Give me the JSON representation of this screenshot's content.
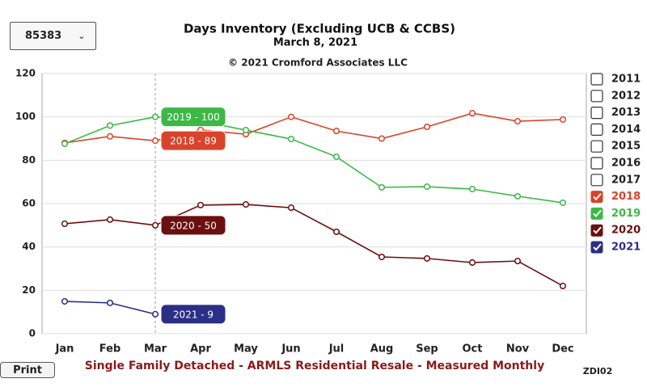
{
  "controls": {
    "dropdown": "85383",
    "print": "Print"
  },
  "chart_data": {
    "type": "line",
    "title": "Days Inventory (Excluding UCB & CCBS)",
    "subtitle": "March 8, 2021",
    "copyright": "© 2021 Cromford Associates LLC",
    "x_label": "Single Family Detached - ARMLS Residential Resale - Measured Monthly",
    "code": "ZDI02",
    "categories": [
      "Jan",
      "Feb",
      "Mar",
      "Apr",
      "May",
      "Jun",
      "Jul",
      "Aug",
      "Sep",
      "Oct",
      "Nov",
      "Dec"
    ],
    "ylim": [
      0,
      120
    ],
    "yticks": [
      0,
      20,
      40,
      60,
      80,
      100,
      120
    ],
    "grid": true,
    "legend": {
      "position": "right",
      "unchecked": [
        "2011",
        "2012",
        "2013",
        "2014",
        "2015",
        "2016",
        "2017"
      ]
    },
    "series": [
      {
        "name": "2018",
        "color": "#d9432b",
        "values": [
          88,
          91,
          89,
          94,
          92,
          100,
          93.5,
          90,
          95.4,
          101.7,
          98,
          98.8
        ],
        "value_labels": [
          null,
          null,
          "2018 - 89",
          null,
          null,
          null,
          null,
          null,
          null,
          null,
          null,
          null
        ]
      },
      {
        "name": "2019",
        "color": "#3cb846",
        "values": [
          87.6,
          96,
          100,
          98,
          93.9,
          89.8,
          81.6,
          67.5,
          67.8,
          66.7,
          63.4,
          60.4
        ],
        "value_labels": [
          null,
          null,
          "2019 - 100",
          null,
          null,
          null,
          null,
          null,
          null,
          null,
          null,
          null
        ]
      },
      {
        "name": "2020",
        "color": "#6b0f0f",
        "values": [
          50.7,
          52.6,
          50,
          59.3,
          59.6,
          58.1,
          47,
          35.4,
          34.7,
          32.8,
          33.5,
          22
        ],
        "value_labels": [
          null,
          null,
          "2020 - 50",
          null,
          null,
          null,
          null,
          null,
          null,
          null,
          null,
          null
        ]
      },
      {
        "name": "2021",
        "color": "#2b2f85",
        "values": [
          14.9,
          14.2,
          9,
          null,
          null,
          null,
          null,
          null,
          null,
          null,
          null,
          null
        ],
        "value_labels": [
          null,
          null,
          "2021 - 9",
          null,
          null,
          null,
          null,
          null,
          null,
          null,
          null,
          null
        ]
      }
    ]
  }
}
